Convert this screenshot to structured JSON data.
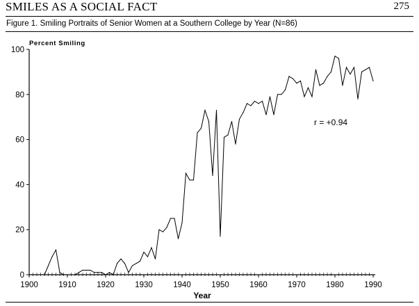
{
  "header": {
    "running_title": "SMILES AS A SOCIAL FACT",
    "page_number": "275"
  },
  "figure": {
    "caption": "Figure 1. Smiling Portraits of Senior Women at a Southern College by Year (N=86)"
  },
  "chart_data": {
    "type": "line",
    "title": "",
    "ylabel": "Percent Smiling",
    "xlabel": "Year",
    "xlim": [
      1900,
      1990
    ],
    "ylim": [
      0,
      100
    ],
    "x_ticks": [
      1900,
      1910,
      1920,
      1930,
      1940,
      1950,
      1960,
      1970,
      1980,
      1990
    ],
    "y_ticks": [
      0,
      20,
      40,
      60,
      80,
      100
    ],
    "grid": false,
    "annotation": "r = +0.94",
    "series": [
      {
        "x": [
          1904,
          1905,
          1906,
          1907,
          1908,
          1909,
          1910,
          1911,
          1912,
          1913,
          1914,
          1915,
          1916,
          1917,
          1918,
          1919,
          1920,
          1921,
          1922,
          1923,
          1924,
          1925,
          1926,
          1927,
          1928,
          1929,
          1930,
          1931,
          1932,
          1933,
          1934,
          1935,
          1936,
          1937,
          1938,
          1939,
          1940,
          1941,
          1942,
          1943,
          1944,
          1945,
          1946,
          1947,
          1948,
          1949,
          1950,
          1951,
          1952,
          1953,
          1954,
          1955,
          1956,
          1957,
          1958,
          1959,
          1960,
          1961,
          1962,
          1963,
          1964,
          1965,
          1966,
          1967,
          1968,
          1969,
          1970,
          1971,
          1972,
          1973,
          1974,
          1975,
          1976,
          1977,
          1978,
          1979,
          1980,
          1981,
          1982,
          1983,
          1984,
          1985,
          1986,
          1987,
          1988,
          1989,
          1990
        ],
        "values": [
          0,
          4,
          8,
          11,
          1,
          0,
          0,
          0,
          0,
          1,
          2,
          2,
          2,
          1,
          1,
          1,
          0,
          1,
          0,
          5,
          7,
          5,
          1,
          4,
          5,
          6,
          10,
          8,
          12,
          7,
          20,
          19,
          21,
          25,
          25,
          16,
          23,
          45,
          42,
          42,
          63,
          65,
          73,
          68,
          44,
          73,
          17,
          61,
          62,
          68,
          58,
          69,
          72,
          76,
          75,
          77,
          76,
          77,
          71,
          79,
          71,
          80,
          80,
          82,
          88,
          87,
          85,
          86,
          79,
          83,
          79,
          91,
          84,
          85,
          88,
          90,
          97,
          96,
          84,
          92,
          89,
          92,
          78,
          90,
          91,
          92,
          86
        ]
      }
    ]
  }
}
